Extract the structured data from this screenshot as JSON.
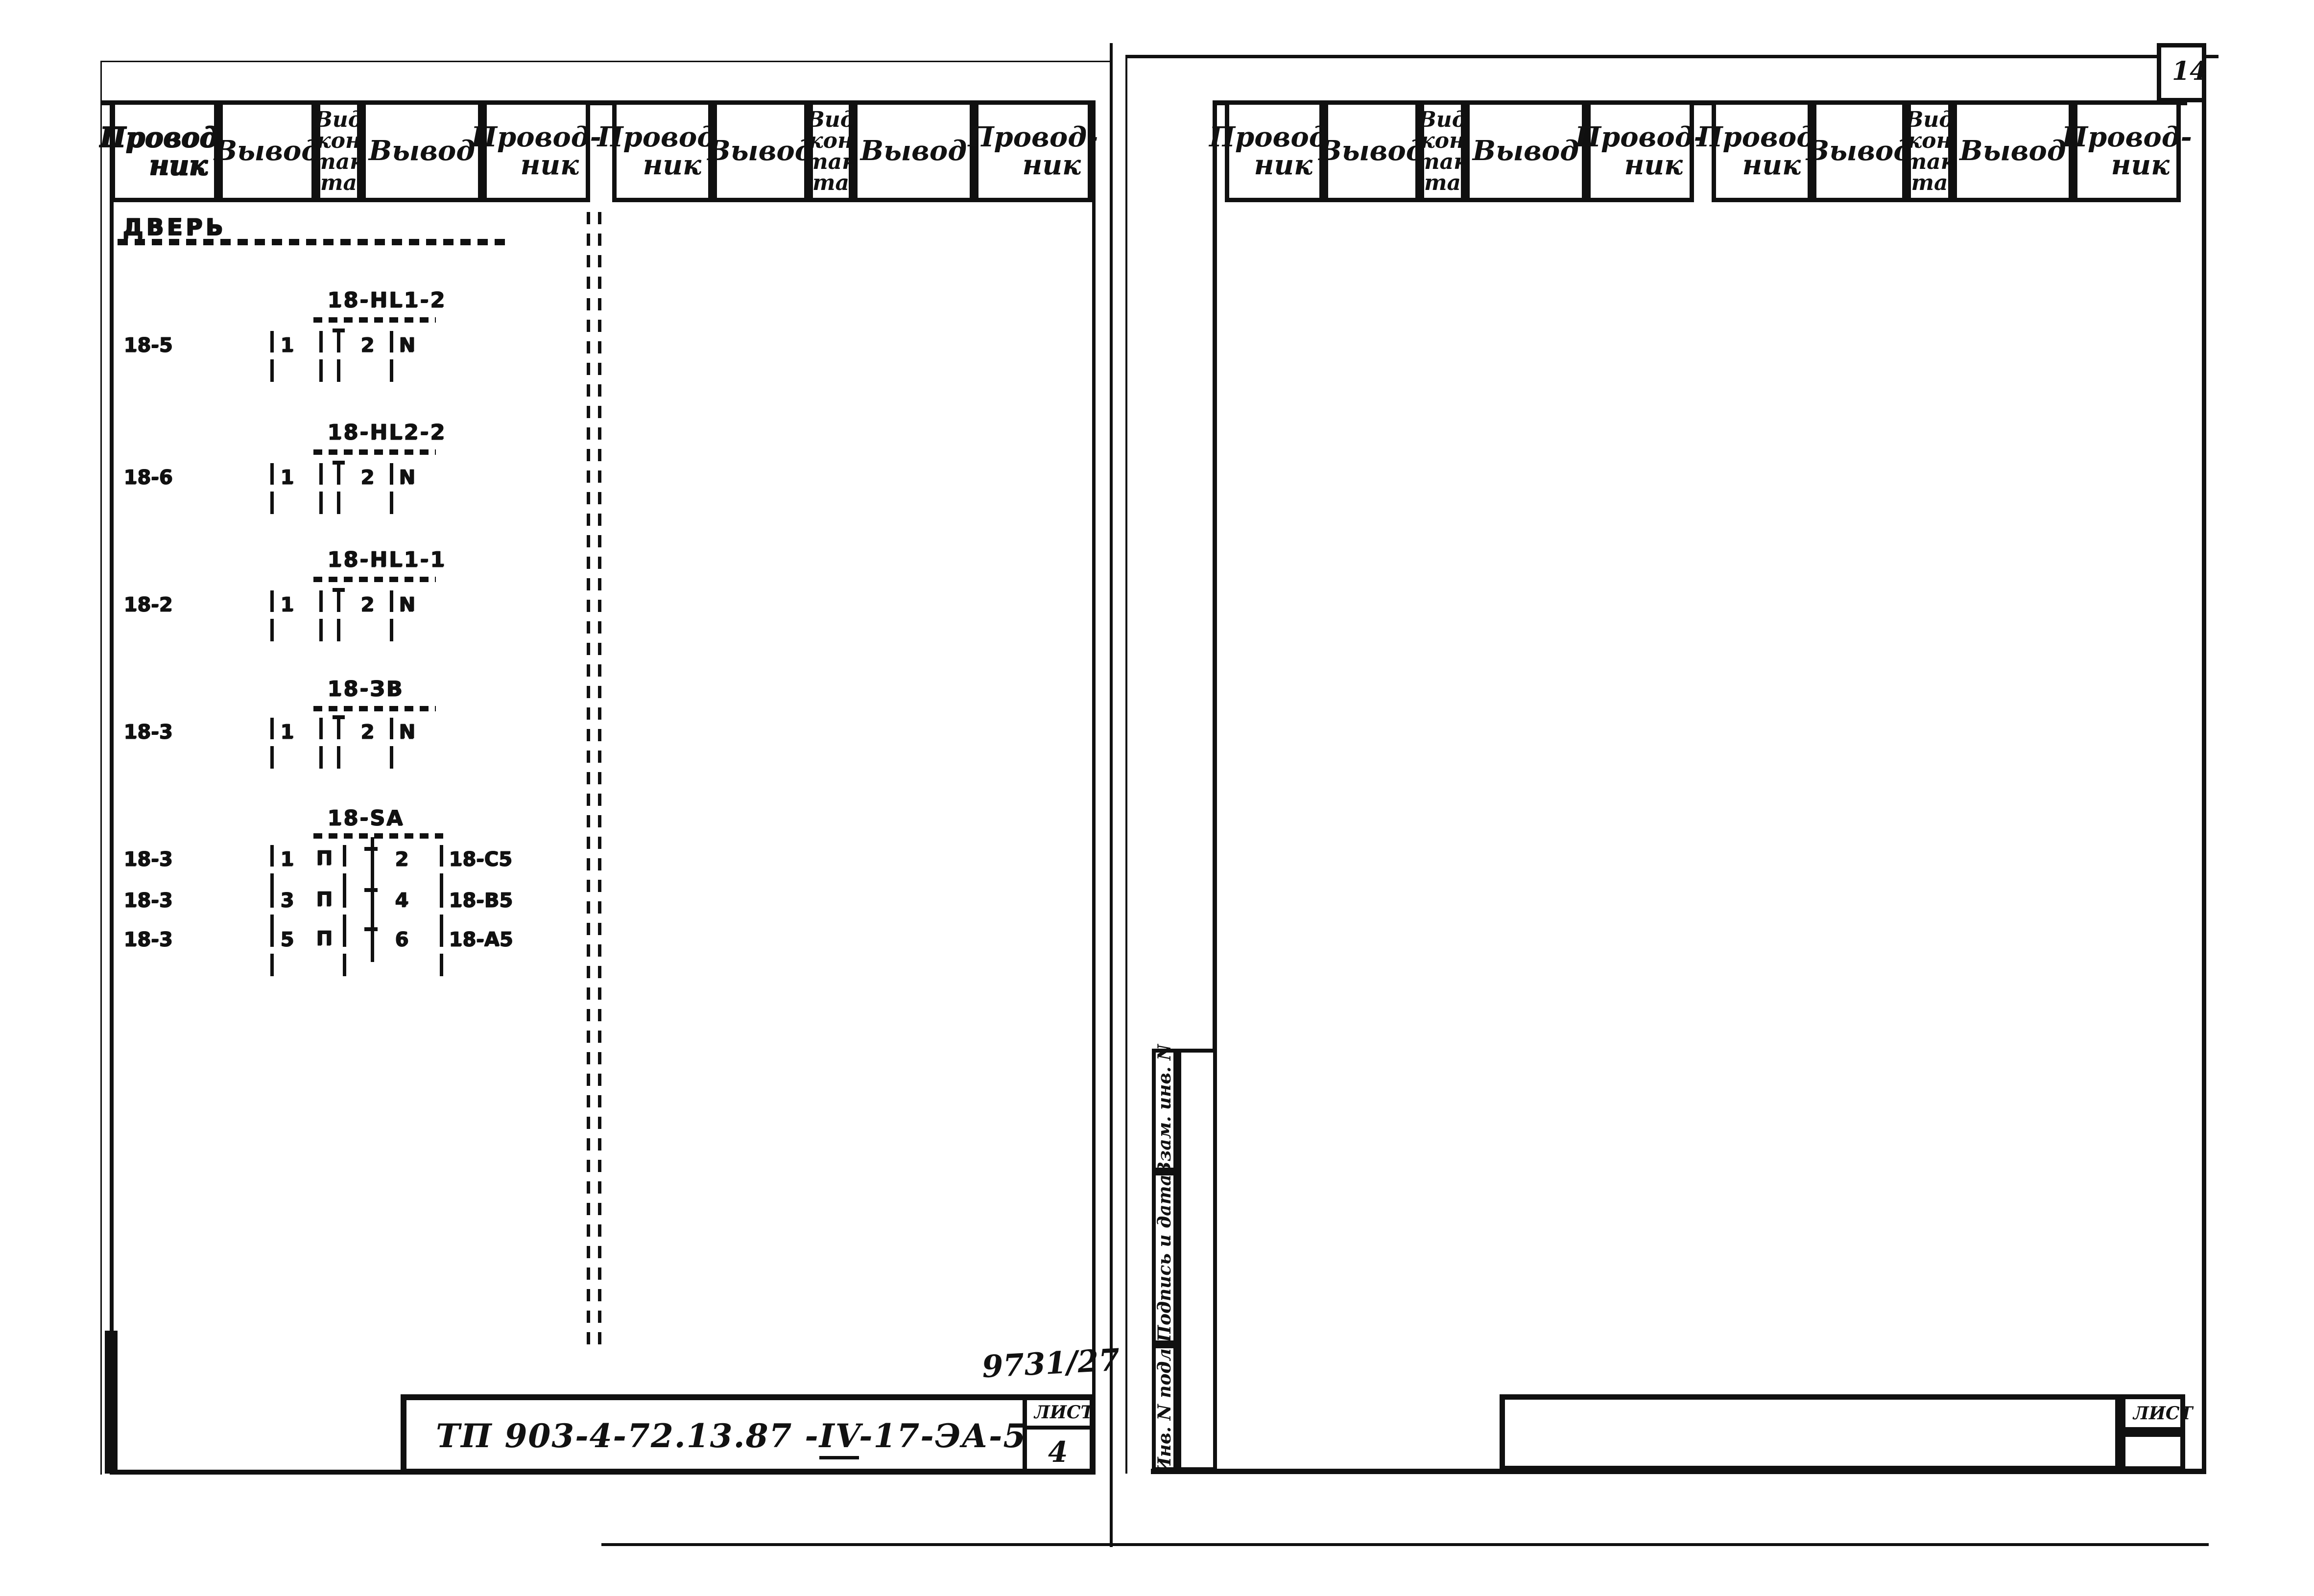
{
  "page": {
    "number": "14"
  },
  "section_label": "ДВЕРЬ",
  "table_headers": {
    "columns": [
      {
        "lines": [
          "Провод-",
          "ник"
        ]
      },
      {
        "lines": [
          "Вывод"
        ]
      },
      {
        "lines": [
          "Вид",
          "кон",
          "так",
          "та"
        ]
      },
      {
        "lines": [
          "Вывод"
        ]
      },
      {
        "lines": [
          "Провод-",
          "ник"
        ]
      }
    ]
  },
  "blocks": [
    {
      "title": "18-HL1-2",
      "rows": [
        {
          "conductor": "18-5",
          "terminal_left": "1",
          "terminal_right": "2",
          "wire_right": "N"
        }
      ]
    },
    {
      "title": "18-HL2-2",
      "rows": [
        {
          "conductor": "18-6",
          "terminal_left": "1",
          "terminal_right": "2",
          "wire_right": "N"
        }
      ]
    },
    {
      "title": "18-HL1-1",
      "rows": [
        {
          "conductor": "18-2",
          "terminal_left": "1",
          "terminal_right": "2",
          "wire_right": "N"
        }
      ]
    },
    {
      "title": "18-ЗВ",
      "rows": [
        {
          "conductor": "18-3",
          "terminal_left": "1",
          "terminal_right": "2",
          "wire_right": "N"
        }
      ]
    },
    {
      "title": "18-SA",
      "rows": [
        {
          "conductor": "18-3",
          "terminal_left": "1",
          "contact_type": "П",
          "terminal_right": "2",
          "wire_right": "18-С5"
        },
        {
          "conductor": "18-3",
          "terminal_left": "3",
          "contact_type": "П",
          "terminal_right": "4",
          "wire_right": "18-В5"
        },
        {
          "conductor": "18-3",
          "terminal_left": "5",
          "contact_type": "П",
          "terminal_right": "6",
          "wire_right": "18-А5"
        }
      ]
    }
  ],
  "corner_stamp": {
    "handwritten_number": "9731/27",
    "doc_code_prefix": "ТП 903-4-72.13.87 -",
    "doc_code_roman": "IV",
    "doc_code_suffix": "-17-ЭА-5",
    "sheet_label": "ЛИСТ",
    "sheet_number": "4"
  },
  "right_corner_stamp": {
    "sheet_label": "ЛИСТ"
  },
  "side_stamp": {
    "cells": [
      "Взам. инв. N",
      "Подпись и дата",
      "Инв. N подл."
    ]
  }
}
